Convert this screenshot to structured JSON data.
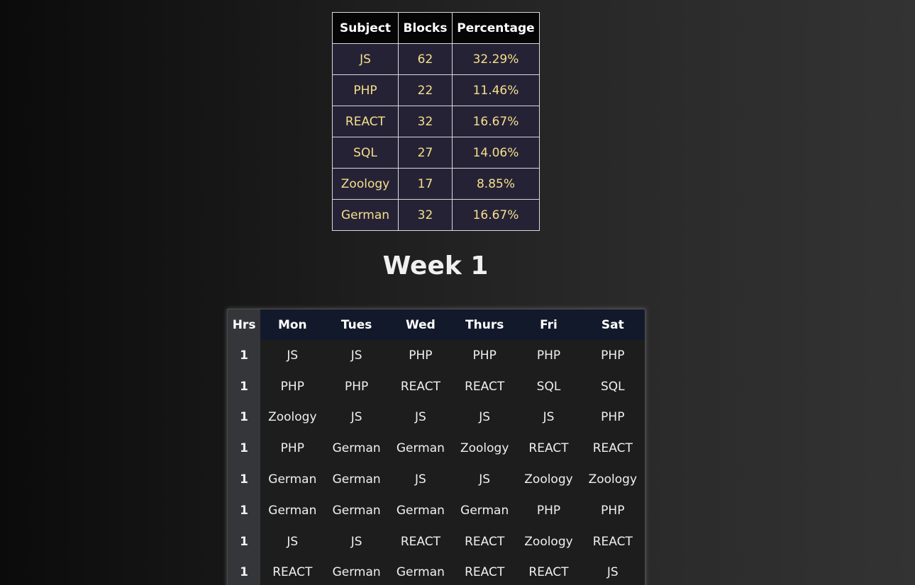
{
  "summary": {
    "headers": [
      "Subject",
      "Blocks",
      "Percentage"
    ],
    "rows": [
      {
        "subject": "JS",
        "blocks": "62",
        "percentage": "32.29%"
      },
      {
        "subject": "PHP",
        "blocks": "22",
        "percentage": "11.46%"
      },
      {
        "subject": "REACT",
        "blocks": "32",
        "percentage": "16.67%"
      },
      {
        "subject": "SQL",
        "blocks": "27",
        "percentage": "14.06%"
      },
      {
        "subject": "Zoology",
        "blocks": "17",
        "percentage": "8.85%"
      },
      {
        "subject": "German",
        "blocks": "32",
        "percentage": "16.67%"
      }
    ]
  },
  "week": {
    "title": "Week 1",
    "headers": [
      "Hrs",
      "Mon",
      "Tues",
      "Wed",
      "Thurs",
      "Fri",
      "Sat"
    ],
    "rows": [
      {
        "hrs": "1",
        "cells": [
          "JS",
          "JS",
          "PHP",
          "PHP",
          "PHP",
          "PHP"
        ]
      },
      {
        "hrs": "1",
        "cells": [
          "PHP",
          "PHP",
          "REACT",
          "REACT",
          "SQL",
          "SQL"
        ]
      },
      {
        "hrs": "1",
        "cells": [
          "Zoology",
          "JS",
          "JS",
          "JS",
          "JS",
          "PHP"
        ]
      },
      {
        "hrs": "1",
        "cells": [
          "PHP",
          "German",
          "German",
          "Zoology",
          "REACT",
          "REACT"
        ]
      },
      {
        "hrs": "1",
        "cells": [
          "German",
          "German",
          "JS",
          "JS",
          "Zoology",
          "Zoology"
        ]
      },
      {
        "hrs": "1",
        "cells": [
          "German",
          "German",
          "German",
          "German",
          "PHP",
          "PHP"
        ]
      },
      {
        "hrs": "1",
        "cells": [
          "JS",
          "JS",
          "REACT",
          "REACT",
          "Zoology",
          "REACT"
        ]
      },
      {
        "hrs": "1",
        "cells": [
          "REACT",
          "German",
          "German",
          "REACT",
          "REACT",
          "JS"
        ]
      }
    ]
  }
}
